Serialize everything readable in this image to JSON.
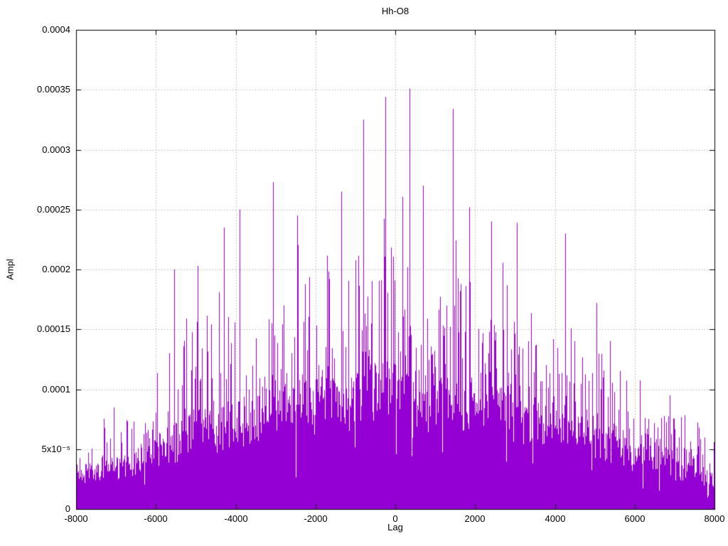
{
  "chart_data": {
    "type": "line",
    "plot_style": "impulses",
    "title": "Hh-O8",
    "xlabel": "Lag",
    "ylabel": "Ampl",
    "xlim": [
      -8000,
      8000
    ],
    "ylim": [
      0,
      0.0004
    ],
    "grid": true,
    "legend": "none",
    "background": "#ffffff",
    "series_color": "#9400d3",
    "grid_color": "#9a9a9a",
    "axis_color": "#000000",
    "x_ticks": [
      {
        "value": -8000,
        "label": "-8000"
      },
      {
        "value": -6000,
        "label": "-6000"
      },
      {
        "value": -4000,
        "label": "-4000"
      },
      {
        "value": -2000,
        "label": "-2000"
      },
      {
        "value": 0,
        "label": "0"
      },
      {
        "value": 2000,
        "label": "2000"
      },
      {
        "value": 4000,
        "label": "4000"
      },
      {
        "value": 6000,
        "label": "6000"
      },
      {
        "value": 8000,
        "label": "8000"
      }
    ],
    "y_ticks": [
      {
        "value": 0,
        "label": "0"
      },
      {
        "value": 5e-05,
        "label": "5x10⁻⁵"
      },
      {
        "value": 0.0001,
        "label": "0.0001"
      },
      {
        "value": 0.00015,
        "label": "0.00015"
      },
      {
        "value": 0.0002,
        "label": "0.0002"
      },
      {
        "value": 0.00025,
        "label": "0.00025"
      },
      {
        "value": 0.0003,
        "label": "0.0003"
      },
      {
        "value": 0.00035,
        "label": "0.00035"
      },
      {
        "value": 0.0004,
        "label": "0.0004"
      }
    ],
    "envelope": {
      "description": "typical spike-top amplitude vs lag (dense noisy impulse plot)",
      "lags": [
        -8000,
        -7500,
        -7000,
        -6500,
        -6000,
        -5500,
        -5000,
        -4500,
        -4000,
        -3500,
        -3000,
        -2500,
        -2000,
        -1500,
        -1000,
        -500,
        0,
        500,
        1000,
        1500,
        2000,
        2500,
        3000,
        3500,
        4000,
        4500,
        5000,
        5500,
        6000,
        6500,
        7000,
        7500,
        8000
      ],
      "max_ampl": [
        7e-05,
        8e-05,
        9.5e-05,
        0.00011,
        0.00013,
        0.00015,
        0.00019,
        0.000185,
        0.0002,
        0.00021,
        0.00023,
        0.000235,
        0.000245,
        0.00025,
        0.00026,
        0.00027,
        0.00027,
        0.00026,
        0.000255,
        0.00025,
        0.000245,
        0.00024,
        0.000215,
        0.000195,
        0.00018,
        0.000175,
        0.00017,
        0.000145,
        0.000125,
        0.000105,
        9.5e-05,
        8.5e-05,
        7e-05
      ]
    },
    "peaks": [
      [
        -5550,
        0.0002
      ],
      [
        -4950,
        0.000203
      ],
      [
        -4300,
        0.000235
      ],
      [
        -3900,
        0.00025
      ],
      [
        -3060,
        0.000273
      ],
      [
        -2450,
        0.000245
      ],
      [
        -1350,
        0.000265
      ],
      [
        -800,
        0.000325
      ],
      [
        -250,
        0.000344
      ],
      [
        350,
        0.000351
      ],
      [
        700,
        0.00027
      ],
      [
        1450,
        0.000334
      ],
      [
        1850,
        0.000252
      ],
      [
        2400,
        0.00024
      ],
      [
        3050,
        0.000239
      ],
      [
        4250,
        0.00023
      ],
      [
        5050,
        0.000172
      ]
    ],
    "body_fraction": 0.45,
    "noise_seed": 1337
  }
}
